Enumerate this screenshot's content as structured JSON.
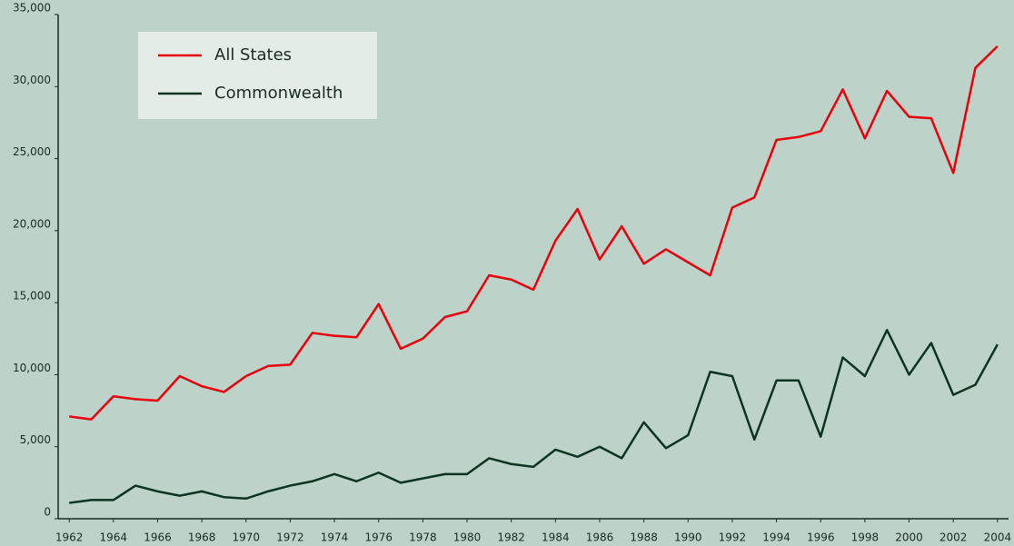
{
  "chart_data": {
    "type": "line",
    "x": [
      1962,
      1963,
      1964,
      1965,
      1966,
      1967,
      1968,
      1969,
      1970,
      1971,
      1972,
      1973,
      1974,
      1975,
      1976,
      1977,
      1978,
      1979,
      1980,
      1981,
      1982,
      1983,
      1984,
      1985,
      1986,
      1987,
      1988,
      1989,
      1990,
      1991,
      1992,
      1993,
      1994,
      1995,
      1996,
      1997,
      1998,
      1999,
      2000,
      2001,
      2002,
      2003,
      2004
    ],
    "series": [
      {
        "name": "All States",
        "color": "#e8000b",
        "values": [
          7100,
          6900,
          8500,
          8300,
          8200,
          9900,
          9200,
          8800,
          9900,
          10600,
          10700,
          12900,
          12700,
          12600,
          14900,
          11800,
          12500,
          14000,
          14400,
          16900,
          16600,
          15900,
          19300,
          21500,
          18000,
          20300,
          17700,
          18700,
          17800,
          16900,
          21600,
          22300,
          26300,
          26500,
          26900,
          29800,
          26400,
          29700,
          27900,
          27800,
          24000,
          31300,
          32800
        ]
      },
      {
        "name": "Commonwealth",
        "color": "#0d3321",
        "values": [
          1100,
          1300,
          1300,
          2300,
          1900,
          1600,
          1900,
          1500,
          1400,
          1900,
          2300,
          2600,
          3100,
          2600,
          3200,
          2500,
          2800,
          3100,
          3100,
          4200,
          3800,
          3600,
          4800,
          4300,
          5000,
          4200,
          6700,
          4900,
          5800,
          10200,
          9900,
          5500,
          9600,
          9600,
          5700,
          11200,
          9900,
          13100,
          10000,
          12200,
          8600,
          9300,
          12100
        ]
      }
    ],
    "xlim": [
      1961.5,
      2004.5
    ],
    "xticks": [
      1962,
      1964,
      1966,
      1968,
      1970,
      1972,
      1974,
      1976,
      1978,
      1980,
      1982,
      1984,
      1986,
      1988,
      1990,
      1992,
      1994,
      1996,
      1998,
      2000,
      2002,
      2004
    ],
    "ylim": [
      0,
      35000
    ],
    "yticks": [
      0,
      {
        "value": 5000,
        "label": "5,000"
      },
      {
        "value": 10000,
        "label": "10,000"
      },
      {
        "value": 15000,
        "label": "15,000"
      },
      {
        "value": 20000,
        "label": "20,000"
      },
      {
        "value": 25000,
        "label": "25,000"
      },
      {
        "value": 30000,
        "label": "30,000"
      },
      {
        "value": 35000,
        "label": "35,000"
      }
    ],
    "grid": false,
    "legend": "upper left"
  }
}
